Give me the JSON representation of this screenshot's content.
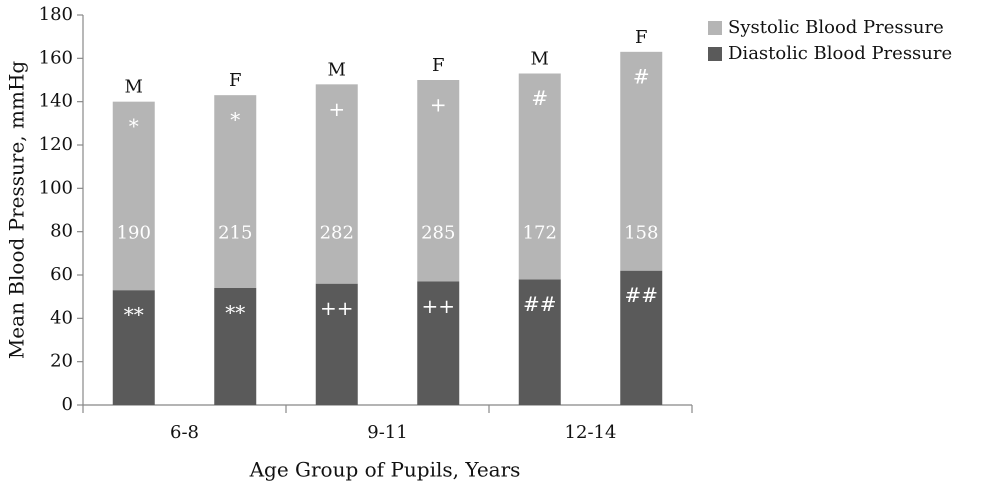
{
  "chart_data": {
    "type": "stacked_bar",
    "y_axis_label": "Mean Blood Pressure, mmHg",
    "x_axis_label": "Age Group of Pupils, Years",
    "groups": [
      "6-8",
      "9-11",
      "12-14"
    ],
    "categories": [
      "M",
      "F",
      "M",
      "F",
      "M",
      "F"
    ],
    "series": [
      {
        "name": "Diastolic Blood Pressure",
        "color": "#5a5a5a",
        "values": [
          53,
          54,
          56,
          57,
          58,
          62
        ],
        "markers": [
          "**",
          "**",
          "++",
          "++",
          "##",
          "##"
        ]
      },
      {
        "name": "Systolic Blood Pressure",
        "color": "#b5b5b5",
        "values": [
          87,
          89,
          92,
          93,
          95,
          101
        ],
        "markers": [
          "*",
          "*",
          "+",
          "+",
          "#",
          "#"
        ]
      }
    ],
    "sample_sizes": [
      190,
      215,
      282,
      285,
      172,
      158
    ],
    "ylim": [
      0,
      180
    ],
    "yticks": [
      0,
      20,
      40,
      60,
      80,
      100,
      120,
      140,
      160,
      180
    ],
    "grid": false
  }
}
